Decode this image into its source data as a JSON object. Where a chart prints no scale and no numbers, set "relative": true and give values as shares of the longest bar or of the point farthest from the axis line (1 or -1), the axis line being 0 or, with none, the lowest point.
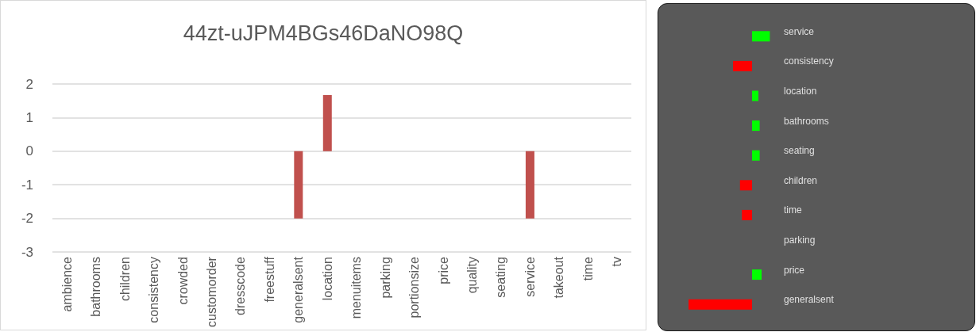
{
  "chart_data": [
    {
      "type": "bar",
      "title": "44zt-uJPM4BGs46DaNO98Q",
      "categories": [
        "ambience",
        "bathrooms",
        "children",
        "consistency",
        "crowded",
        "customorder",
        "dresscode",
        "freestuff",
        "generalsent",
        "location",
        "menuitems",
        "parking",
        "portionsize",
        "price",
        "quality",
        "seating",
        "service",
        "takeout",
        "time",
        "tv"
      ],
      "values": [
        0,
        0,
        0,
        0,
        0,
        0,
        0,
        0,
        -2,
        1.67,
        0,
        0,
        0,
        0,
        0,
        0,
        -2,
        0,
        0,
        0
      ],
      "color": "#c0504d",
      "ylim": [
        -3,
        2
      ],
      "yticks": [
        -3,
        -2,
        -1,
        0,
        1,
        2
      ],
      "grid": "y"
    },
    {
      "type": "bar",
      "orientation": "horizontal",
      "relative": true,
      "categories": [
        "service",
        "consistency",
        "location",
        "bathrooms",
        "seating",
        "children",
        "time",
        "parking",
        "price",
        "generalsent"
      ],
      "values": [
        0.28,
        -0.3,
        0.1,
        0.12,
        0.12,
        -0.19,
        -0.16,
        0,
        0.15,
        -1
      ],
      "colors": [
        "#00ff00",
        "#ff0000",
        "#00ff00",
        "#00ff00",
        "#00ff00",
        "#ff0000",
        "#ff0000",
        "#00ff00",
        "#00ff00",
        "#ff0000"
      ]
    }
  ]
}
